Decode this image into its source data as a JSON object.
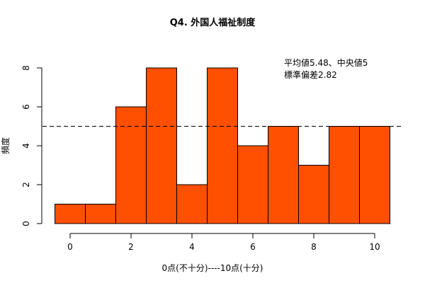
{
  "chart_data": {
    "type": "bar",
    "title": "Q4. 外国人福祉制度",
    "xlabel": "0点(不十分)----10点(十分)",
    "ylabel": "頻度",
    "categories": [
      "0",
      "1",
      "2",
      "3",
      "4",
      "5",
      "6",
      "7",
      "8",
      "9",
      "10"
    ],
    "values": [
      1,
      1,
      6,
      8,
      2,
      8,
      4,
      5,
      3,
      5,
      5
    ],
    "x_ticks": [
      "0",
      "2",
      "4",
      "6",
      "8",
      "10"
    ],
    "y_ticks": [
      "0",
      "2",
      "4",
      "6",
      "8"
    ],
    "xlim": [
      -0.5,
      10.5
    ],
    "ylim": [
      0,
      8
    ],
    "grid": false,
    "bar_color": "#FF4F00",
    "edge_color": "#000000",
    "reference_line": {
      "y": 5,
      "style": "dashed",
      "color": "#000000"
    },
    "annotations": [
      "平均値5.48、中央値5",
      "標準偏差2.82"
    ],
    "stats": {
      "mean": 5.48,
      "median": 5,
      "sd": 2.82
    }
  }
}
